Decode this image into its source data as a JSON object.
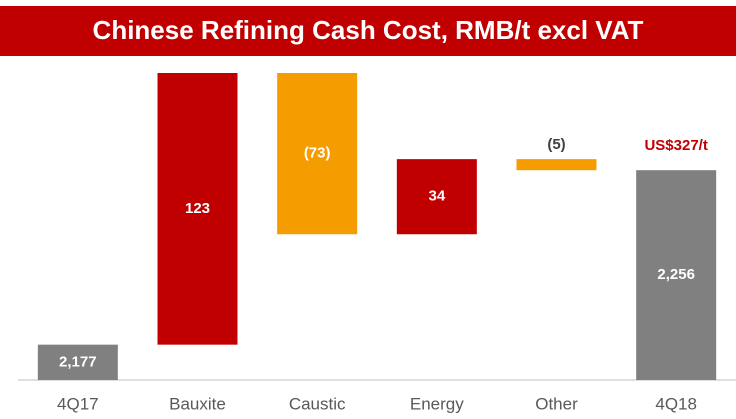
{
  "chart_data": {
    "type": "waterfall",
    "title": "Chinese Refining Cash Cost, RMB/t excl VAT",
    "categories": [
      "4Q17",
      "Bauxite",
      "Caustic",
      "Energy",
      "Other",
      "4Q18"
    ],
    "measures": [
      "absolute",
      "relative",
      "relative",
      "relative",
      "relative",
      "total"
    ],
    "values": [
      2177,
      123,
      -73,
      34,
      -5,
      2256
    ],
    "value_labels": [
      "2,177",
      "123",
      "(73)",
      "34",
      "(5)",
      "2,256"
    ],
    "colors": [
      "#808080",
      "#c00000",
      "#f59c00",
      "#c00000",
      "#f59c00",
      "#808080"
    ],
    "annotation": "US$327/t",
    "ylim": [
      2161,
      2300
    ]
  }
}
